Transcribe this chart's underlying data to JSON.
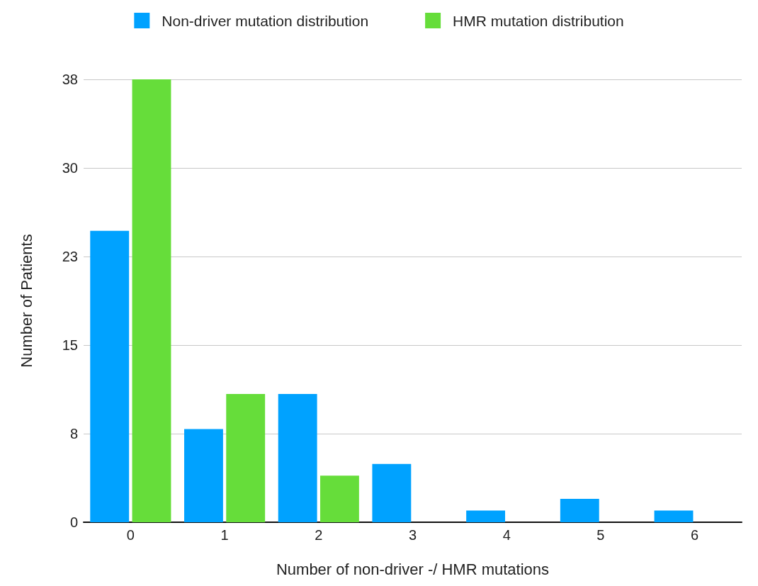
{
  "chart_data": {
    "type": "bar",
    "xlabel": "Number of non-driver -/ HMR mutations",
    "ylabel": "Number of Patients",
    "categories": [
      "0",
      "1",
      "2",
      "3",
      "4",
      "5",
      "6"
    ],
    "series": [
      {
        "name": "Non-driver mutation distribution",
        "color": "#00a2ff",
        "values": [
          25,
          8,
          11,
          5,
          1,
          2,
          1
        ]
      },
      {
        "name": "HMR mutation distribution",
        "color": "#66dd3a",
        "values": [
          38,
          11,
          4,
          0,
          0,
          0,
          0
        ]
      }
    ],
    "ylim": [
      0,
      38
    ],
    "yticks": [
      0,
      {
        "value": 7.6,
        "label": "8"
      },
      {
        "value": 15.2,
        "label": "15"
      },
      {
        "value": 22.8,
        "label": "23"
      },
      {
        "value": 30.4,
        "label": "30"
      },
      38
    ],
    "grid": "y",
    "legend": "top"
  }
}
